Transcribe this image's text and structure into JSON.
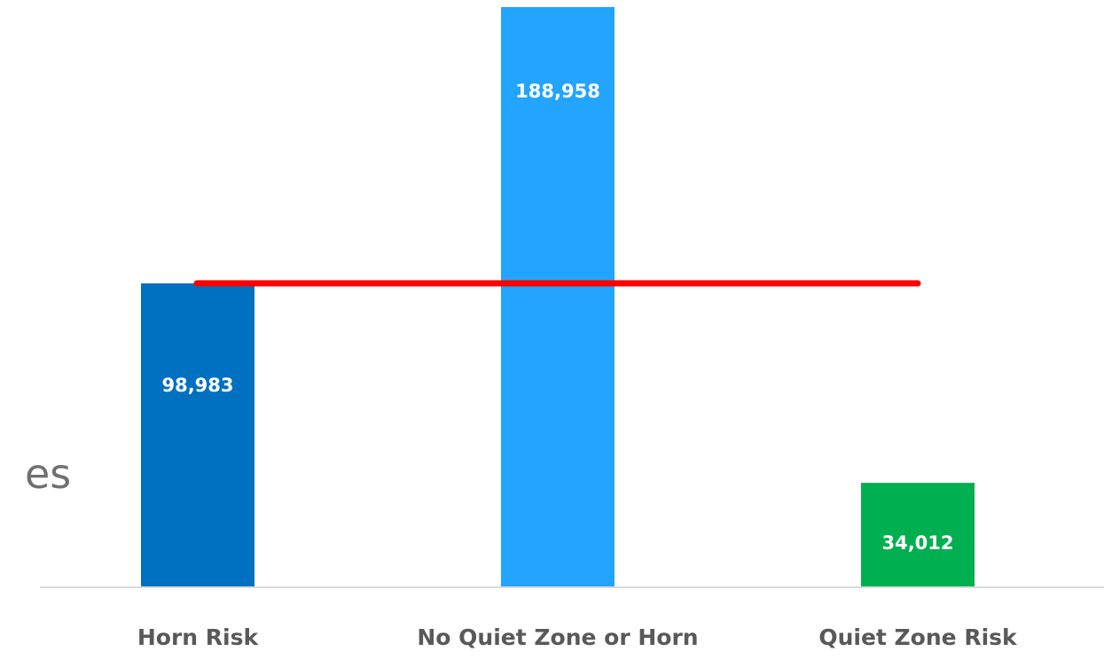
{
  "chart_data": {
    "type": "bar",
    "categories": [
      "Horn Risk",
      "No Quiet Zone or Horn",
      "Quiet Zone Risk"
    ],
    "values": [
      98983,
      188958,
      34012
    ],
    "value_labels": [
      "98,983",
      "188,958",
      "34,012"
    ],
    "colors": [
      "#0070C0",
      "#22A4FF",
      "#00B050"
    ],
    "reference_line": {
      "value": 98983,
      "color": "#FF0000"
    },
    "ylim": [
      0,
      188958
    ],
    "grid": false,
    "legend": "none"
  },
  "left_partial_text": "es"
}
